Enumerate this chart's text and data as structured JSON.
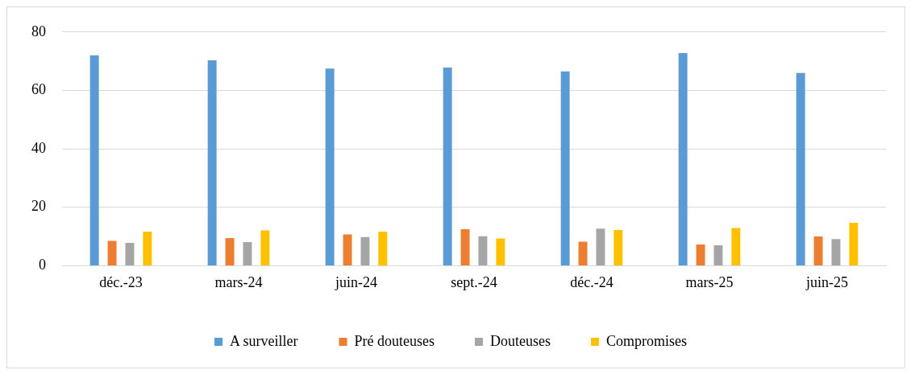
{
  "chart_data": {
    "type": "bar",
    "categories": [
      "déc.-23",
      "mars-24",
      "juin-24",
      "sept.-24",
      "déc.-24",
      "mars-25",
      "juin-25"
    ],
    "series": [
      {
        "name": "A surveiller",
        "color": "#5b9bd5",
        "values": [
          72,
          70.3,
          67.5,
          67.8,
          66.5,
          72.8,
          66
        ]
      },
      {
        "name": "Pré douteuses",
        "color": "#ed7d31",
        "values": [
          8.5,
          9.5,
          10.7,
          12.5,
          8.2,
          7.3,
          10
        ]
      },
      {
        "name": "Douteuses",
        "color": "#a5a5a5",
        "values": [
          7.8,
          8.1,
          9.8,
          10.1,
          12.7,
          7,
          9.1
        ]
      },
      {
        "name": "Compromises",
        "color": "#ffc000",
        "values": [
          11.7,
          12.1,
          11.7,
          9.3,
          12.2,
          12.9,
          14.7
        ]
      }
    ],
    "ylim": [
      0,
      80
    ],
    "yticks": [
      0,
      20,
      40,
      60,
      80
    ],
    "grid": "y",
    "legend": "bottom"
  }
}
